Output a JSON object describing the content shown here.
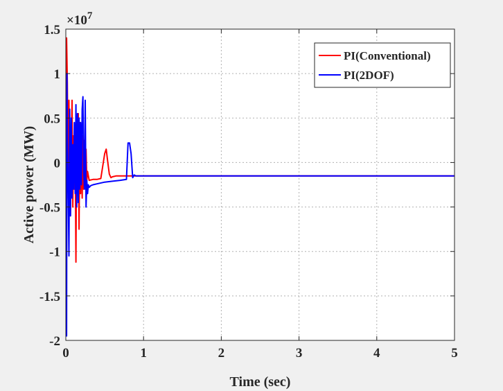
{
  "chart_data": {
    "type": "line",
    "title": "",
    "xlabel": "Time (sec)",
    "ylabel": "Active power (MW)",
    "y_exponent_label": "×10",
    "y_exponent_power": "7",
    "xlim": [
      0,
      5
    ],
    "ylim": [
      -2,
      1.5
    ],
    "xticks": [
      0,
      1,
      2,
      3,
      4,
      5
    ],
    "xtick_labels": [
      "0",
      "1",
      "2",
      "3",
      "4",
      "5"
    ],
    "yticks": [
      -2,
      -1.5,
      -1,
      -0.5,
      0,
      0.5,
      1,
      1.5
    ],
    "ytick_labels": [
      "-2",
      "-1.5",
      "-1",
      "-0.5",
      "0",
      "0.5",
      "1",
      "1.5"
    ],
    "grid": true,
    "legend_position": "top-right",
    "background": "#ffffff",
    "series": [
      {
        "name": "PI(Conventional)",
        "color": "#ff0000",
        "x": [
          0,
          0.01,
          0.02,
          0.03,
          0.04,
          0.05,
          0.06,
          0.07,
          0.08,
          0.09,
          0.1,
          0.11,
          0.12,
          0.13,
          0.14,
          0.15,
          0.16,
          0.17,
          0.18,
          0.19,
          0.2,
          0.21,
          0.22,
          0.23,
          0.24,
          0.25,
          0.26,
          0.27,
          0.28,
          0.3,
          0.35,
          0.4,
          0.45,
          0.5,
          0.52,
          0.54,
          0.56,
          0.58,
          0.6,
          0.65,
          0.7,
          0.75,
          0.8,
          0.85,
          0.9,
          0.95,
          1.0,
          1.5,
          2.0,
          3.0,
          4.0,
          5.0
        ],
        "y": [
          0.1,
          1.4,
          0.9,
          -0.4,
          0.7,
          -0.2,
          -0.6,
          0.1,
          0.7,
          -0.5,
          0.3,
          -0.3,
          0.2,
          -1.12,
          0.5,
          -0.3,
          0.55,
          -0.75,
          0.45,
          -0.35,
          0.35,
          -0.4,
          0.3,
          -0.3,
          0.25,
          -0.25,
          0.15,
          -0.2,
          -0.1,
          -0.2,
          -0.19,
          -0.19,
          -0.18,
          0.1,
          0.15,
          0.0,
          -0.13,
          -0.17,
          -0.16,
          -0.15,
          -0.15,
          -0.15,
          -0.15,
          -0.15,
          -0.15,
          -0.15,
          -0.15,
          -0.15,
          -0.15,
          -0.15,
          -0.15,
          -0.15
        ]
      },
      {
        "name": "PI(2DOF)",
        "color": "#0000ff",
        "x": [
          0,
          0.005,
          0.01,
          0.015,
          0.02,
          0.03,
          0.04,
          0.05,
          0.06,
          0.07,
          0.08,
          0.09,
          0.1,
          0.11,
          0.12,
          0.13,
          0.14,
          0.15,
          0.16,
          0.17,
          0.18,
          0.19,
          0.2,
          0.21,
          0.22,
          0.23,
          0.24,
          0.25,
          0.26,
          0.27,
          0.28,
          0.29,
          0.3,
          0.32,
          0.35,
          0.4,
          0.5,
          0.6,
          0.7,
          0.78,
          0.8,
          0.82,
          0.84,
          0.86,
          0.88,
          0.9,
          0.95,
          1.0,
          1.5,
          2.0,
          3.0,
          4.0,
          5.0
        ],
        "y": [
          0,
          -1.0,
          -1.95,
          1.0,
          0.3,
          -0.3,
          -1.05,
          0.6,
          -0.6,
          0.5,
          -0.4,
          0.2,
          -0.3,
          0.45,
          -0.35,
          0.65,
          -0.5,
          0.55,
          -0.45,
          0.5,
          -0.3,
          0.45,
          -0.25,
          0.6,
          0.74,
          -0.1,
          -0.3,
          0.7,
          -0.5,
          -0.2,
          -0.35,
          -0.25,
          -0.28,
          -0.26,
          -0.25,
          -0.24,
          -0.22,
          -0.21,
          -0.2,
          -0.19,
          0.22,
          0.22,
          0.1,
          -0.17,
          -0.14,
          -0.15,
          -0.15,
          -0.15,
          -0.15,
          -0.15,
          -0.15,
          -0.15,
          -0.15
        ]
      }
    ]
  }
}
